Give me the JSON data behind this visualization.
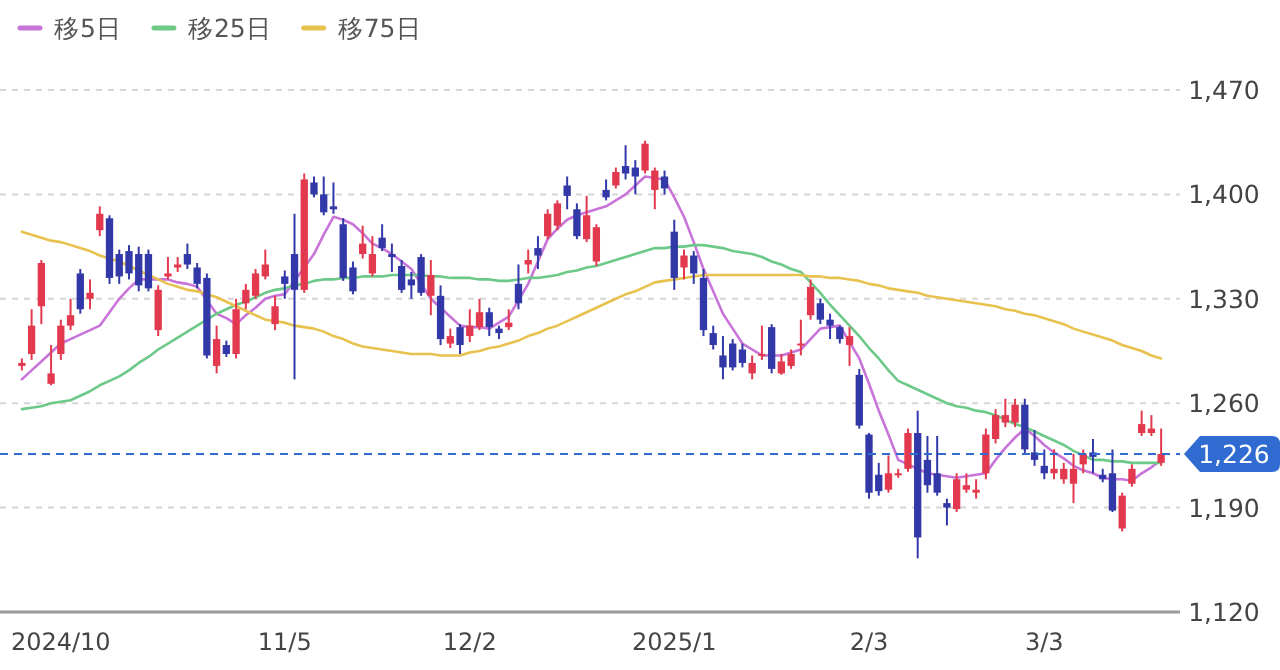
{
  "chart_data": {
    "type": "candlestick",
    "legend": "top left",
    "grid": "y",
    "categories": [
      null,
      null,
      null,
      null,
      "2024/10",
      null,
      null,
      null,
      null,
      null,
      null,
      null,
      null,
      null,
      null,
      null,
      null,
      null,
      null,
      null,
      null,
      null,
      null,
      null,
      null,
      null,
      null,
      "11/5",
      null,
      null,
      null,
      null,
      null,
      null,
      null,
      null,
      null,
      null,
      null,
      null,
      null,
      null,
      null,
      null,
      null,
      null,
      "12/2",
      null,
      null,
      null,
      null,
      null,
      null,
      null,
      null,
      null,
      null,
      null,
      null,
      null,
      null,
      null,
      null,
      null,
      null,
      null,
      null,
      "2025/1",
      null,
      null,
      null,
      null,
      null,
      null,
      null,
      null,
      null,
      null,
      null,
      null,
      null,
      null,
      null,
      null,
      null,
      null,
      null,
      "2/3",
      null,
      null,
      null,
      null,
      null,
      null,
      null,
      null,
      null,
      null,
      null,
      null,
      null,
      null,
      null,
      null,
      null,
      "3/3",
      null,
      null,
      null,
      null,
      null,
      null,
      null,
      null,
      null,
      null,
      null,
      null
    ],
    "ylim": [
      1120,
      1470
    ],
    "yticks": [
      {
        "value": 1120,
        "label": "1,120"
      },
      {
        "value": 1190,
        "label": "1,190"
      },
      {
        "value": 1260,
        "label": "1,260"
      },
      {
        "value": 1330,
        "label": "1,330"
      },
      {
        "value": 1400,
        "label": "1,400"
      },
      {
        "value": 1470,
        "label": "1,470"
      }
    ],
    "ohlc": [
      [
        1285,
        1290,
        1282,
        1287
      ],
      [
        1293,
        1323,
        1289,
        1312
      ],
      [
        1325,
        1356,
        1313,
        1354
      ],
      [
        1273,
        1299,
        1272,
        1280
      ],
      [
        1293,
        1316,
        1289,
        1312
      ],
      [
        1312,
        1330,
        1309,
        1319
      ],
      [
        1347,
        1350,
        1320,
        1323
      ],
      [
        1330,
        1343,
        1323,
        1334
      ],
      [
        1376,
        1392,
        1372,
        1387
      ],
      [
        1384,
        1386,
        1340,
        1344
      ],
      [
        1360,
        1363,
        1340,
        1345
      ],
      [
        1362,
        1366,
        1343,
        1347
      ],
      [
        1360,
        1365,
        1335,
        1339
      ],
      [
        1360,
        1363,
        1335,
        1337
      ],
      [
        1309,
        1339,
        1305,
        1336
      ],
      [
        1345,
        1358,
        1343,
        1347
      ],
      [
        1351,
        1358,
        1348,
        1353
      ],
      [
        1360,
        1367,
        1350,
        1353
      ],
      [
        1351,
        1354,
        1337,
        1340
      ],
      [
        1344,
        1347,
        1290,
        1292
      ],
      [
        1285,
        1312,
        1280,
        1303
      ],
      [
        1299,
        1302,
        1291,
        1293
      ],
      [
        1293,
        1330,
        1290,
        1323
      ],
      [
        1327,
        1340,
        1323,
        1336
      ],
      [
        1332,
        1350,
        1330,
        1347
      ],
      [
        1345,
        1363,
        1343,
        1353
      ],
      [
        1313,
        1332,
        1309,
        1325
      ],
      [
        1345,
        1349,
        1330,
        1340
      ],
      [
        1360,
        1387,
        1276,
        1336
      ],
      [
        1336,
        1414,
        1334,
        1410
      ],
      [
        1408,
        1412,
        1398,
        1400
      ],
      [
        1400,
        1412,
        1386,
        1388
      ],
      [
        1392,
        1408,
        1387,
        1390
      ],
      [
        1380,
        1384,
        1342,
        1344
      ],
      [
        1351,
        1355,
        1333,
        1335
      ],
      [
        1360,
        1379,
        1357,
        1367
      ],
      [
        1347,
        1372,
        1345,
        1360
      ],
      [
        1371,
        1380,
        1362,
        1364
      ],
      [
        1360,
        1367,
        1348,
        1358
      ],
      [
        1352,
        1356,
        1334,
        1336
      ],
      [
        1343,
        1348,
        1330,
        1339
      ],
      [
        1358,
        1360,
        1332,
        1334
      ],
      [
        1332,
        1356,
        1319,
        1346
      ],
      [
        1332,
        1339,
        1299,
        1303
      ],
      [
        1300,
        1310,
        1297,
        1305
      ],
      [
        1311,
        1313,
        1293,
        1299
      ],
      [
        1305,
        1323,
        1301,
        1312
      ],
      [
        1311,
        1330,
        1309,
        1321
      ],
      [
        1321,
        1324,
        1305,
        1311
      ],
      [
        1310,
        1312,
        1303,
        1307
      ],
      [
        1311,
        1323,
        1309,
        1314
      ],
      [
        1340,
        1353,
        1323,
        1327
      ],
      [
        1353,
        1363,
        1347,
        1356
      ],
      [
        1364,
        1372,
        1350,
        1359
      ],
      [
        1372,
        1390,
        1370,
        1387
      ],
      [
        1379,
        1396,
        1376,
        1394
      ],
      [
        1406,
        1412,
        1390,
        1399
      ],
      [
        1390,
        1394,
        1370,
        1372
      ],
      [
        1370,
        1399,
        1368,
        1386
      ],
      [
        1355,
        1380,
        1352,
        1378
      ],
      [
        1403,
        1410,
        1396,
        1398
      ],
      [
        1406,
        1418,
        1404,
        1415
      ],
      [
        1419,
        1433,
        1410,
        1414
      ],
      [
        1418,
        1423,
        1400,
        1412
      ],
      [
        1416,
        1436,
        1414,
        1434
      ],
      [
        1403,
        1418,
        1390,
        1416
      ],
      [
        1412,
        1416,
        1400,
        1404
      ],
      [
        1375,
        1383,
        1336,
        1344
      ],
      [
        1351,
        1363,
        1343,
        1359
      ],
      [
        1359,
        1362,
        1340,
        1347
      ],
      [
        1344,
        1350,
        1305,
        1309
      ],
      [
        1307,
        1312,
        1296,
        1299
      ],
      [
        1292,
        1305,
        1276,
        1284
      ],
      [
        1300,
        1303,
        1282,
        1284
      ],
      [
        1296,
        1300,
        1284,
        1287
      ],
      [
        1280,
        1292,
        1276,
        1287
      ],
      [
        1292,
        1312,
        1289,
        1293
      ],
      [
        1311,
        1313,
        1280,
        1283
      ],
      [
        1280,
        1293,
        1279,
        1288
      ],
      [
        1285,
        1296,
        1283,
        1293
      ],
      [
        1299,
        1316,
        1292,
        1300
      ],
      [
        1319,
        1343,
        1316,
        1338
      ],
      [
        1327,
        1330,
        1313,
        1316
      ],
      [
        1316,
        1320,
        1303,
        1312
      ],
      [
        1311,
        1312,
        1300,
        1303
      ],
      [
        1299,
        1311,
        1285,
        1305
      ],
      [
        1279,
        1283,
        1243,
        1245
      ],
      [
        1239,
        1240,
        1196,
        1200
      ],
      [
        1212,
        1220,
        1198,
        1201
      ],
      [
        1202,
        1225,
        1200,
        1213
      ],
      [
        1212,
        1216,
        1210,
        1213
      ],
      [
        1216,
        1243,
        1214,
        1240
      ],
      [
        1240,
        1255,
        1156,
        1170
      ],
      [
        1222,
        1238,
        1200,
        1205
      ],
      [
        1213,
        1238,
        1198,
        1200
      ],
      [
        1193,
        1196,
        1178,
        1190
      ],
      [
        1189,
        1213,
        1187,
        1209
      ],
      [
        1202,
        1213,
        1200,
        1205
      ],
      [
        1200,
        1209,
        1196,
        1202
      ],
      [
        1213,
        1243,
        1209,
        1239
      ],
      [
        1236,
        1256,
        1233,
        1252
      ],
      [
        1247,
        1263,
        1244,
        1252
      ],
      [
        1247,
        1263,
        1244,
        1259
      ],
      [
        1259,
        1263,
        1226,
        1229
      ],
      [
        1227,
        1242,
        1218,
        1222
      ],
      [
        1218,
        1229,
        1209,
        1213
      ],
      [
        1213,
        1229,
        1209,
        1216
      ],
      [
        1209,
        1220,
        1206,
        1216
      ],
      [
        1206,
        1226,
        1193,
        1216
      ],
      [
        1219,
        1229,
        1213,
        1226
      ],
      [
        1227,
        1236,
        1213,
        1224
      ],
      [
        1212,
        1216,
        1207,
        1209
      ],
      [
        1213,
        1229,
        1187,
        1188
      ],
      [
        1176,
        1200,
        1174,
        1198
      ],
      [
        1206,
        1219,
        1204,
        1216
      ],
      [
        1240,
        1255,
        1238,
        1246
      ],
      [
        1240,
        1252,
        1238,
        1243
      ],
      [
        1220,
        1243,
        1218,
        1226
      ]
    ],
    "series": [
      {
        "name": "移5日",
        "type": "line",
        "color": "#c874d9",
        "values": [
          1276,
          1282,
          1288,
          1294,
          1300,
          1303,
          1306,
          1309,
          1312,
          1321,
          1330,
          1337,
          1343,
          1343,
          1343,
          1343,
          1341,
          1340,
          1338,
          1329,
          1320,
          1317,
          1313,
          1319,
          1324,
          1330,
          1332,
          1333,
          1342,
          1351,
          1360,
          1373,
          1385,
          1383,
          1380,
          1374,
          1367,
          1364,
          1360,
          1355,
          1350,
          1340,
          1330,
          1324,
          1318,
          1312,
          1311,
          1311,
          1310,
          1314,
          1318,
          1329,
          1340,
          1355,
          1370,
          1377,
          1383,
          1386,
          1388,
          1390,
          1392,
          1396,
          1400,
          1406,
          1412,
          1411,
          1410,
          1398,
          1385,
          1368,
          1350,
          1335,
          1320,
          1310,
          1300,
          1296,
          1292,
          1292,
          1292,
          1294,
          1296,
          1303,
          1310,
          1311,
          1312,
          1301,
          1290,
          1273,
          1255,
          1239,
          1222,
          1219,
          1216,
          1213,
          1212,
          1211,
          1210,
          1211,
          1212,
          1213,
          1222,
          1230,
          1237,
          1243,
          1238,
          1232,
          1227,
          1223,
          1218,
          1215,
          1213,
          1210,
          1209,
          1209,
          1208,
          1213,
          1217,
          1222
        ]
      },
      {
        "name": "移25日",
        "type": "line",
        "color": "#6cc987",
        "values": [
          1256,
          1257,
          1258,
          1260,
          1261,
          1262,
          1265,
          1268,
          1272,
          1275,
          1278,
          1282,
          1287,
          1291,
          1296,
          1300,
          1304,
          1308,
          1312,
          1316,
          1320,
          1323,
          1326,
          1328,
          1331,
          1334,
          1336,
          1337,
          1339,
          1340,
          1342,
          1343,
          1343,
          1344,
          1344,
          1345,
          1345,
          1345,
          1346,
          1346,
          1346,
          1346,
          1345,
          1345,
          1344,
          1344,
          1344,
          1343,
          1343,
          1342,
          1342,
          1343,
          1344,
          1344,
          1345,
          1346,
          1348,
          1349,
          1351,
          1352,
          1354,
          1356,
          1358,
          1360,
          1362,
          1364,
          1364,
          1365,
          1365,
          1366,
          1366,
          1365,
          1364,
          1362,
          1361,
          1360,
          1358,
          1355,
          1353,
          1350,
          1348,
          1341,
          1334,
          1326,
          1319,
          1312,
          1305,
          1297,
          1290,
          1282,
          1275,
          1272,
          1269,
          1266,
          1263,
          1260,
          1258,
          1257,
          1255,
          1254,
          1252,
          1249,
          1246,
          1244,
          1241,
          1238,
          1235,
          1232,
          1228,
          1225,
          1222,
          1222,
          1221,
          1221,
          1220,
          1220,
          1220,
          1220
        ]
      },
      {
        "name": "移75日",
        "type": "line",
        "color": "#e8c24e",
        "values": [
          1375,
          1373,
          1371,
          1369,
          1368,
          1366,
          1364,
          1362,
          1359,
          1357,
          1355,
          1352,
          1349,
          1346,
          1343,
          1340,
          1338,
          1336,
          1335,
          1333,
          1331,
          1328,
          1325,
          1322,
          1319,
          1316,
          1315,
          1314,
          1312,
          1311,
          1310,
          1308,
          1305,
          1303,
          1300,
          1298,
          1297,
          1296,
          1295,
          1294,
          1293,
          1293,
          1293,
          1292,
          1292,
          1292,
          1294,
          1295,
          1297,
          1298,
          1300,
          1302,
          1305,
          1307,
          1310,
          1312,
          1315,
          1318,
          1321,
          1324,
          1327,
          1330,
          1333,
          1335,
          1338,
          1341,
          1342,
          1343,
          1344,
          1345,
          1346,
          1346,
          1346,
          1346,
          1346,
          1346,
          1346,
          1346,
          1346,
          1346,
          1346,
          1345,
          1345,
          1344,
          1344,
          1343,
          1342,
          1340,
          1339,
          1337,
          1336,
          1335,
          1334,
          1332,
          1331,
          1330,
          1329,
          1328,
          1327,
          1326,
          1325,
          1323,
          1322,
          1320,
          1319,
          1317,
          1315,
          1313,
          1310,
          1308,
          1306,
          1304,
          1302,
          1299,
          1297,
          1295,
          1292,
          1290
        ]
      }
    ],
    "ref_lines": [
      {
        "axis": "y",
        "value": 1226,
        "label": "1,226",
        "color": "#2f6bd0",
        "line_style": "dashed"
      }
    ]
  }
}
